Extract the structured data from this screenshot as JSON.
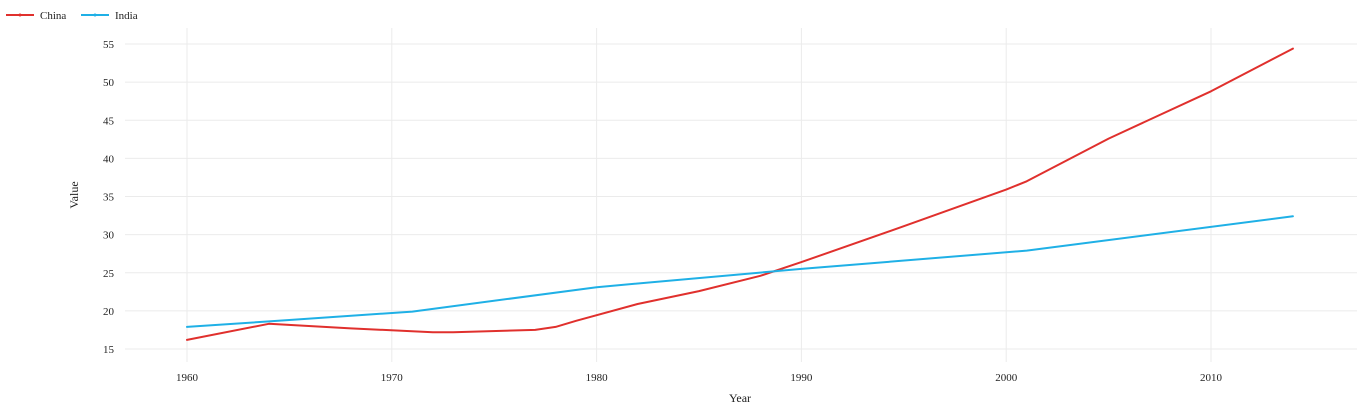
{
  "chart_data": {
    "type": "line",
    "title": "",
    "xlabel": "Year",
    "ylabel": "Value",
    "xlim": [
      1956,
      2017
    ],
    "ylim": [
      14,
      57
    ],
    "x_ticks": [
      1960,
      1970,
      1980,
      1990,
      2000,
      2010
    ],
    "y_ticks": [
      15,
      20,
      25,
      30,
      35,
      40,
      45,
      50,
      55
    ],
    "grid": true,
    "legend_position": "top-left",
    "series": [
      {
        "name": "China",
        "color": "#e0302d",
        "x": [
          1960,
          1964,
          1968,
          1972,
          1973,
          1977,
          1978,
          1979,
          1982,
          1985,
          1988,
          1990,
          1995,
          2000,
          2001,
          2005,
          2010,
          2014
        ],
        "y": [
          16.2,
          18.3,
          17.7,
          17.2,
          17.2,
          17.5,
          17.9,
          18.7,
          20.9,
          22.6,
          24.6,
          26.4,
          31.1,
          35.9,
          37.0,
          42.6,
          48.8,
          54.4
        ]
      },
      {
        "name": "India",
        "color": "#1fb0e6",
        "x": [
          1960,
          1965,
          1971,
          1980,
          1990,
          2001,
          2014
        ],
        "y": [
          17.9,
          18.8,
          19.9,
          23.1,
          25.5,
          27.9,
          32.4
        ]
      }
    ]
  }
}
